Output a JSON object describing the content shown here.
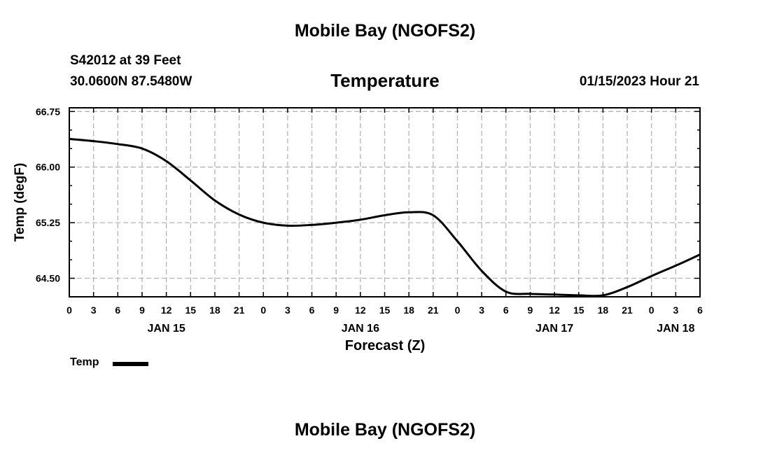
{
  "header": {
    "title_top": "Mobile Bay (NGOFS2)",
    "station": "S42012 at 39 Feet",
    "coords": "30.0600N  87.5480W",
    "datetime": "01/15/2023 Hour 21",
    "title_bottom": "Mobile Bay (NGOFS2)"
  },
  "chart_data": {
    "type": "line",
    "title": "Temperature",
    "xlabel": "Forecast (Z)",
    "ylabel": "Temp (degF)",
    "ylim": [
      64.25,
      66.8
    ],
    "xlim": [
      0,
      78
    ],
    "yticks": [
      64.5,
      65.25,
      66.0,
      66.75
    ],
    "ytick_labels": [
      "64.50",
      "65.25",
      "66.00",
      "66.75"
    ],
    "xtick_labels": [
      "0",
      "3",
      "6",
      "9",
      "12",
      "15",
      "18",
      "21",
      "0",
      "3",
      "6",
      "9",
      "12",
      "15",
      "18",
      "21",
      "0",
      "3",
      "6",
      "9",
      "12",
      "15",
      "18",
      "21",
      "0",
      "3",
      "6"
    ],
    "date_labels": [
      {
        "label": "JAN 15",
        "hour": 12
      },
      {
        "label": "JAN 16",
        "hour": 36
      },
      {
        "label": "JAN 17",
        "hour": 60
      },
      {
        "label": "JAN 18",
        "hour": 75
      }
    ],
    "grid": true,
    "legend": {
      "placement": "bottom-left",
      "entries": [
        "Temp"
      ]
    },
    "series": [
      {
        "name": "Temp",
        "color": "#000000",
        "x": [
          0,
          3,
          6,
          9,
          12,
          15,
          18,
          21,
          24,
          27,
          30,
          33,
          36,
          39,
          42,
          45,
          48,
          51,
          54,
          57,
          60,
          63,
          66,
          69,
          72,
          75,
          78
        ],
        "y": [
          66.38,
          66.35,
          66.31,
          66.25,
          66.08,
          65.82,
          65.55,
          65.36,
          65.25,
          65.21,
          65.22,
          65.25,
          65.29,
          65.35,
          65.39,
          65.35,
          65.0,
          64.6,
          64.32,
          64.29,
          64.28,
          64.27,
          64.27,
          64.38,
          64.53,
          64.67,
          64.82
        ]
      }
    ]
  }
}
